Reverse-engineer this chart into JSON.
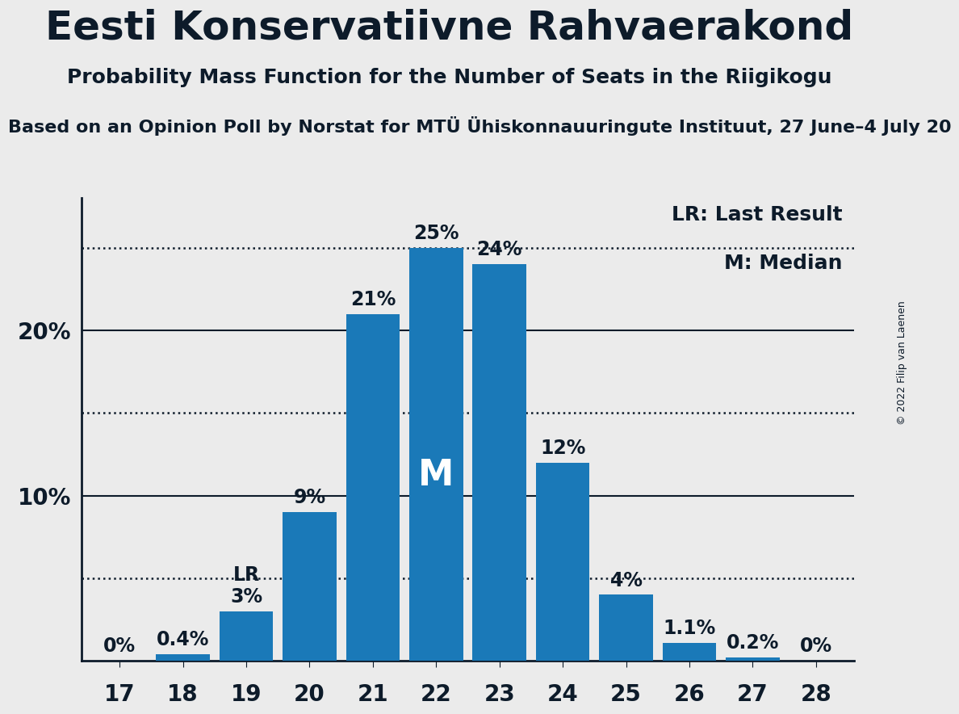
{
  "title": "Eesti Konservatiivne Rahvaerakond",
  "subtitle": "Probability Mass Function for the Number of Seats in the Riigikogu",
  "sub_subtitle": "Based on an Opinion Poll by Norstat for MTÜ Ühiskonnauuringute Instituut, 27 June–4 July 20",
  "copyright": "© 2022 Filip van Laenen",
  "seats": [
    17,
    18,
    19,
    20,
    21,
    22,
    23,
    24,
    25,
    26,
    27,
    28
  ],
  "probabilities": [
    0.0,
    0.4,
    3.0,
    9.0,
    21.0,
    25.0,
    24.0,
    12.0,
    4.0,
    1.1,
    0.2,
    0.0
  ],
  "labels": [
    "0%",
    "0.4%",
    "3%",
    "9%",
    "21%",
    "25%",
    "24%",
    "12%",
    "4%",
    "1.1%",
    "0.2%",
    "0%"
  ],
  "bar_color": "#1a79b8",
  "background_color": "#ebebeb",
  "lr_seat": 19,
  "median_seat": 22,
  "ylim": [
    0,
    28
  ],
  "solid_lines": [
    10,
    20
  ],
  "dotted_lines": [
    5,
    15,
    25
  ],
  "title_fontsize": 36,
  "subtitle_fontsize": 18,
  "sub_subtitle_fontsize": 16,
  "bar_label_fontsize": 17,
  "axis_label_fontsize": 20,
  "legend_fontsize": 18,
  "text_color": "#0d1b2a"
}
